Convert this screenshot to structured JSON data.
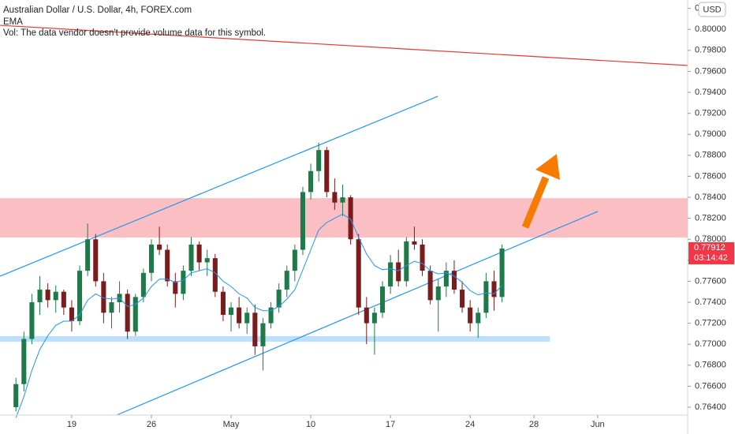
{
  "chart_data": {
    "type": "candlestick",
    "title": "Australian Dollar / U.S. Dollar, 4h, FOREX.com",
    "volume_note": "Vol: The data vendor doesn't provide volume data for this symbol.",
    "currency": "USD",
    "xlim": [
      0,
      86.3
    ],
    "ylim": [
      0.76325,
      0.8028
    ],
    "xticks": [
      {
        "value": 9,
        "label": "19"
      },
      {
        "value": 19,
        "label": "26"
      },
      {
        "value": 29,
        "label": "May"
      },
      {
        "value": 39,
        "label": "10"
      },
      {
        "value": 49,
        "label": "17"
      },
      {
        "value": 59,
        "label": "24"
      },
      {
        "value": 67,
        "label": "28"
      },
      {
        "value": 75,
        "label": "Jun"
      }
    ],
    "yticks": [
      {
        "value": 0.764,
        "label": "0.76400"
      },
      {
        "value": 0.766,
        "label": "0.76600"
      },
      {
        "value": 0.768,
        "label": "0.76800"
      },
      {
        "value": 0.77,
        "label": "0.77000"
      },
      {
        "value": 0.772,
        "label": "0.77200"
      },
      {
        "value": 0.774,
        "label": "0.77400"
      },
      {
        "value": 0.776,
        "label": "0.77600"
      },
      {
        "value": 0.778,
        "label": "0.77800"
      },
      {
        "value": 0.78,
        "label": "0.78000"
      },
      {
        "value": 0.782,
        "label": "0.78200"
      },
      {
        "value": 0.784,
        "label": "0.78400"
      },
      {
        "value": 0.786,
        "label": "0.78600"
      },
      {
        "value": 0.788,
        "label": "0.78800"
      },
      {
        "value": 0.79,
        "label": "0.79000"
      },
      {
        "value": 0.792,
        "label": "0.79200"
      },
      {
        "value": 0.794,
        "label": "0.79400"
      },
      {
        "value": 0.796,
        "label": "0.79600"
      },
      {
        "value": 0.798,
        "label": "0.79800"
      },
      {
        "value": 0.8,
        "label": "0.80000"
      },
      {
        "value": 0.802,
        "label": "0.80200"
      }
    ],
    "up_color": "#1f7a4a",
    "down_color": "#7a1c1c",
    "x": [
      2,
      3,
      4,
      5,
      6,
      7,
      8,
      9,
      10,
      11,
      12,
      13,
      14,
      15,
      16,
      17,
      18,
      19,
      20,
      21,
      22,
      23,
      24,
      25,
      26,
      27,
      28,
      29,
      30,
      31,
      32,
      33,
      34,
      35,
      36,
      37,
      38,
      39,
      40,
      41,
      42,
      43,
      44,
      45,
      46,
      47,
      48,
      49,
      50,
      51,
      52,
      53,
      54,
      55,
      56,
      57,
      58,
      59,
      60,
      61,
      62,
      63
    ],
    "open": [
      0.764,
      0.7662,
      0.7705,
      0.774,
      0.7752,
      0.7742,
      0.775,
      0.7735,
      0.7722,
      0.777,
      0.78,
      0.776,
      0.773,
      0.774,
      0.7748,
      0.7712,
      0.7745,
      0.7768,
      0.7795,
      0.779,
      0.776,
      0.7748,
      0.777,
      0.7795,
      0.7778,
      0.7782,
      0.775,
      0.7728,
      0.7735,
      0.772,
      0.773,
      0.7698,
      0.772,
      0.7735,
      0.7752,
      0.777,
      0.779,
      0.7845,
      0.7865,
      0.7885,
      0.7845,
      0.7835,
      0.784,
      0.78,
      0.7735,
      0.772,
      0.773,
      0.7755,
      0.7778,
      0.776,
      0.7798,
      0.7795,
      0.777,
      0.7742,
      0.7755,
      0.777,
      0.7752,
      0.7735,
      0.772,
      0.773,
      0.776,
      0.7745
    ],
    "high": [
      0.7668,
      0.7712,
      0.7748,
      0.7765,
      0.7758,
      0.7756,
      0.7752,
      0.7742,
      0.7775,
      0.7815,
      0.7805,
      0.7768,
      0.7745,
      0.776,
      0.7752,
      0.7748,
      0.7772,
      0.78,
      0.7812,
      0.7795,
      0.7768,
      0.7775,
      0.7802,
      0.7798,
      0.779,
      0.7786,
      0.7755,
      0.774,
      0.7745,
      0.7735,
      0.7738,
      0.7725,
      0.774,
      0.7758,
      0.7775,
      0.7795,
      0.785,
      0.7872,
      0.7892,
      0.7888,
      0.7858,
      0.7852,
      0.7842,
      0.7805,
      0.7745,
      0.7735,
      0.776,
      0.7785,
      0.779,
      0.7802,
      0.7812,
      0.78,
      0.7775,
      0.7762,
      0.7778,
      0.778,
      0.776,
      0.7742,
      0.7735,
      0.7768,
      0.777,
      0.7795
    ],
    "low": [
      0.7636,
      0.7655,
      0.77,
      0.7728,
      0.7735,
      0.773,
      0.7728,
      0.7712,
      0.7718,
      0.7765,
      0.7755,
      0.772,
      0.7715,
      0.773,
      0.7705,
      0.7708,
      0.774,
      0.776,
      0.7785,
      0.7755,
      0.7735,
      0.7742,
      0.7765,
      0.777,
      0.7765,
      0.7745,
      0.7722,
      0.7712,
      0.7715,
      0.771,
      0.769,
      0.7675,
      0.7715,
      0.773,
      0.7745,
      0.776,
      0.7785,
      0.7838,
      0.7855,
      0.784,
      0.7828,
      0.7822,
      0.7795,
      0.7728,
      0.77,
      0.769,
      0.7725,
      0.7748,
      0.7755,
      0.7755,
      0.779,
      0.7765,
      0.7738,
      0.7712,
      0.7745,
      0.7748,
      0.773,
      0.7712,
      0.7706,
      0.7725,
      0.7732,
      0.774
    ],
    "close": [
      0.7662,
      0.7705,
      0.774,
      0.7752,
      0.7742,
      0.775,
      0.7735,
      0.7722,
      0.777,
      0.78,
      0.776,
      0.773,
      0.774,
      0.7748,
      0.7712,
      0.7745,
      0.7768,
      0.7795,
      0.779,
      0.776,
      0.7748,
      0.777,
      0.7795,
      0.7778,
      0.7782,
      0.775,
      0.7728,
      0.7735,
      0.772,
      0.773,
      0.7698,
      0.772,
      0.7735,
      0.7752,
      0.777,
      0.779,
      0.7845,
      0.7865,
      0.7885,
      0.7845,
      0.7835,
      0.784,
      0.78,
      0.7735,
      0.772,
      0.773,
      0.7755,
      0.7778,
      0.776,
      0.7798,
      0.7795,
      0.777,
      0.7742,
      0.7755,
      0.777,
      0.7752,
      0.7735,
      0.772,
      0.773,
      0.776,
      0.7745,
      0.77912
    ],
    "ema": {
      "name": "EMA",
      "color": "#2196f3",
      "values": [
        0.763,
        0.765,
        0.7675,
        0.7695,
        0.7708,
        0.7718,
        0.7722,
        0.7722,
        0.7728,
        0.7742,
        0.7748,
        0.7744,
        0.7743,
        0.7744,
        0.7736,
        0.7738,
        0.7744,
        0.7755,
        0.7762,
        0.7762,
        0.7759,
        0.7761,
        0.7768,
        0.777,
        0.7772,
        0.7768,
        0.776,
        0.7755,
        0.7748,
        0.7744,
        0.7735,
        0.7732,
        0.7732,
        0.7736,
        0.7743,
        0.7752,
        0.7771,
        0.779,
        0.7809,
        0.7816,
        0.782,
        0.7824,
        0.7819,
        0.7802,
        0.7786,
        0.7775,
        0.7771,
        0.7772,
        0.777,
        0.7775,
        0.7779,
        0.7777,
        0.777,
        0.7767,
        0.7768,
        0.7765,
        0.7759,
        0.7751,
        0.7747,
        0.7749,
        0.7748,
        0.7756
      ]
    },
    "last_price": {
      "value": 0.77912,
      "countdown": "03:14:42",
      "color": "#f23645"
    },
    "trendlines": [
      {
        "color": "#e53935",
        "x": [
          0,
          86.3
        ],
        "y": [
          0.80039,
          0.79656
        ]
      },
      {
        "color": "#2196f3",
        "x": [
          0,
          54.93
        ],
        "y": [
          0.77648,
          0.79362
        ]
      },
      {
        "color": "#2196f3",
        "x": [
          14.65,
          75.02
        ],
        "y": [
          0.76325,
          0.78265
        ]
      }
    ],
    "zones": [
      {
        "color": "rgba(242,54,69,0.32)",
        "xlim": [
          0,
          86.3
        ],
        "ylim": [
          0.78017,
          0.78392
        ]
      },
      {
        "color": "rgba(33,150,243,0.3)",
        "xlim": [
          0,
          69
        ],
        "ylim": [
          0.77024,
          0.77077
        ]
      }
    ]
  }
}
